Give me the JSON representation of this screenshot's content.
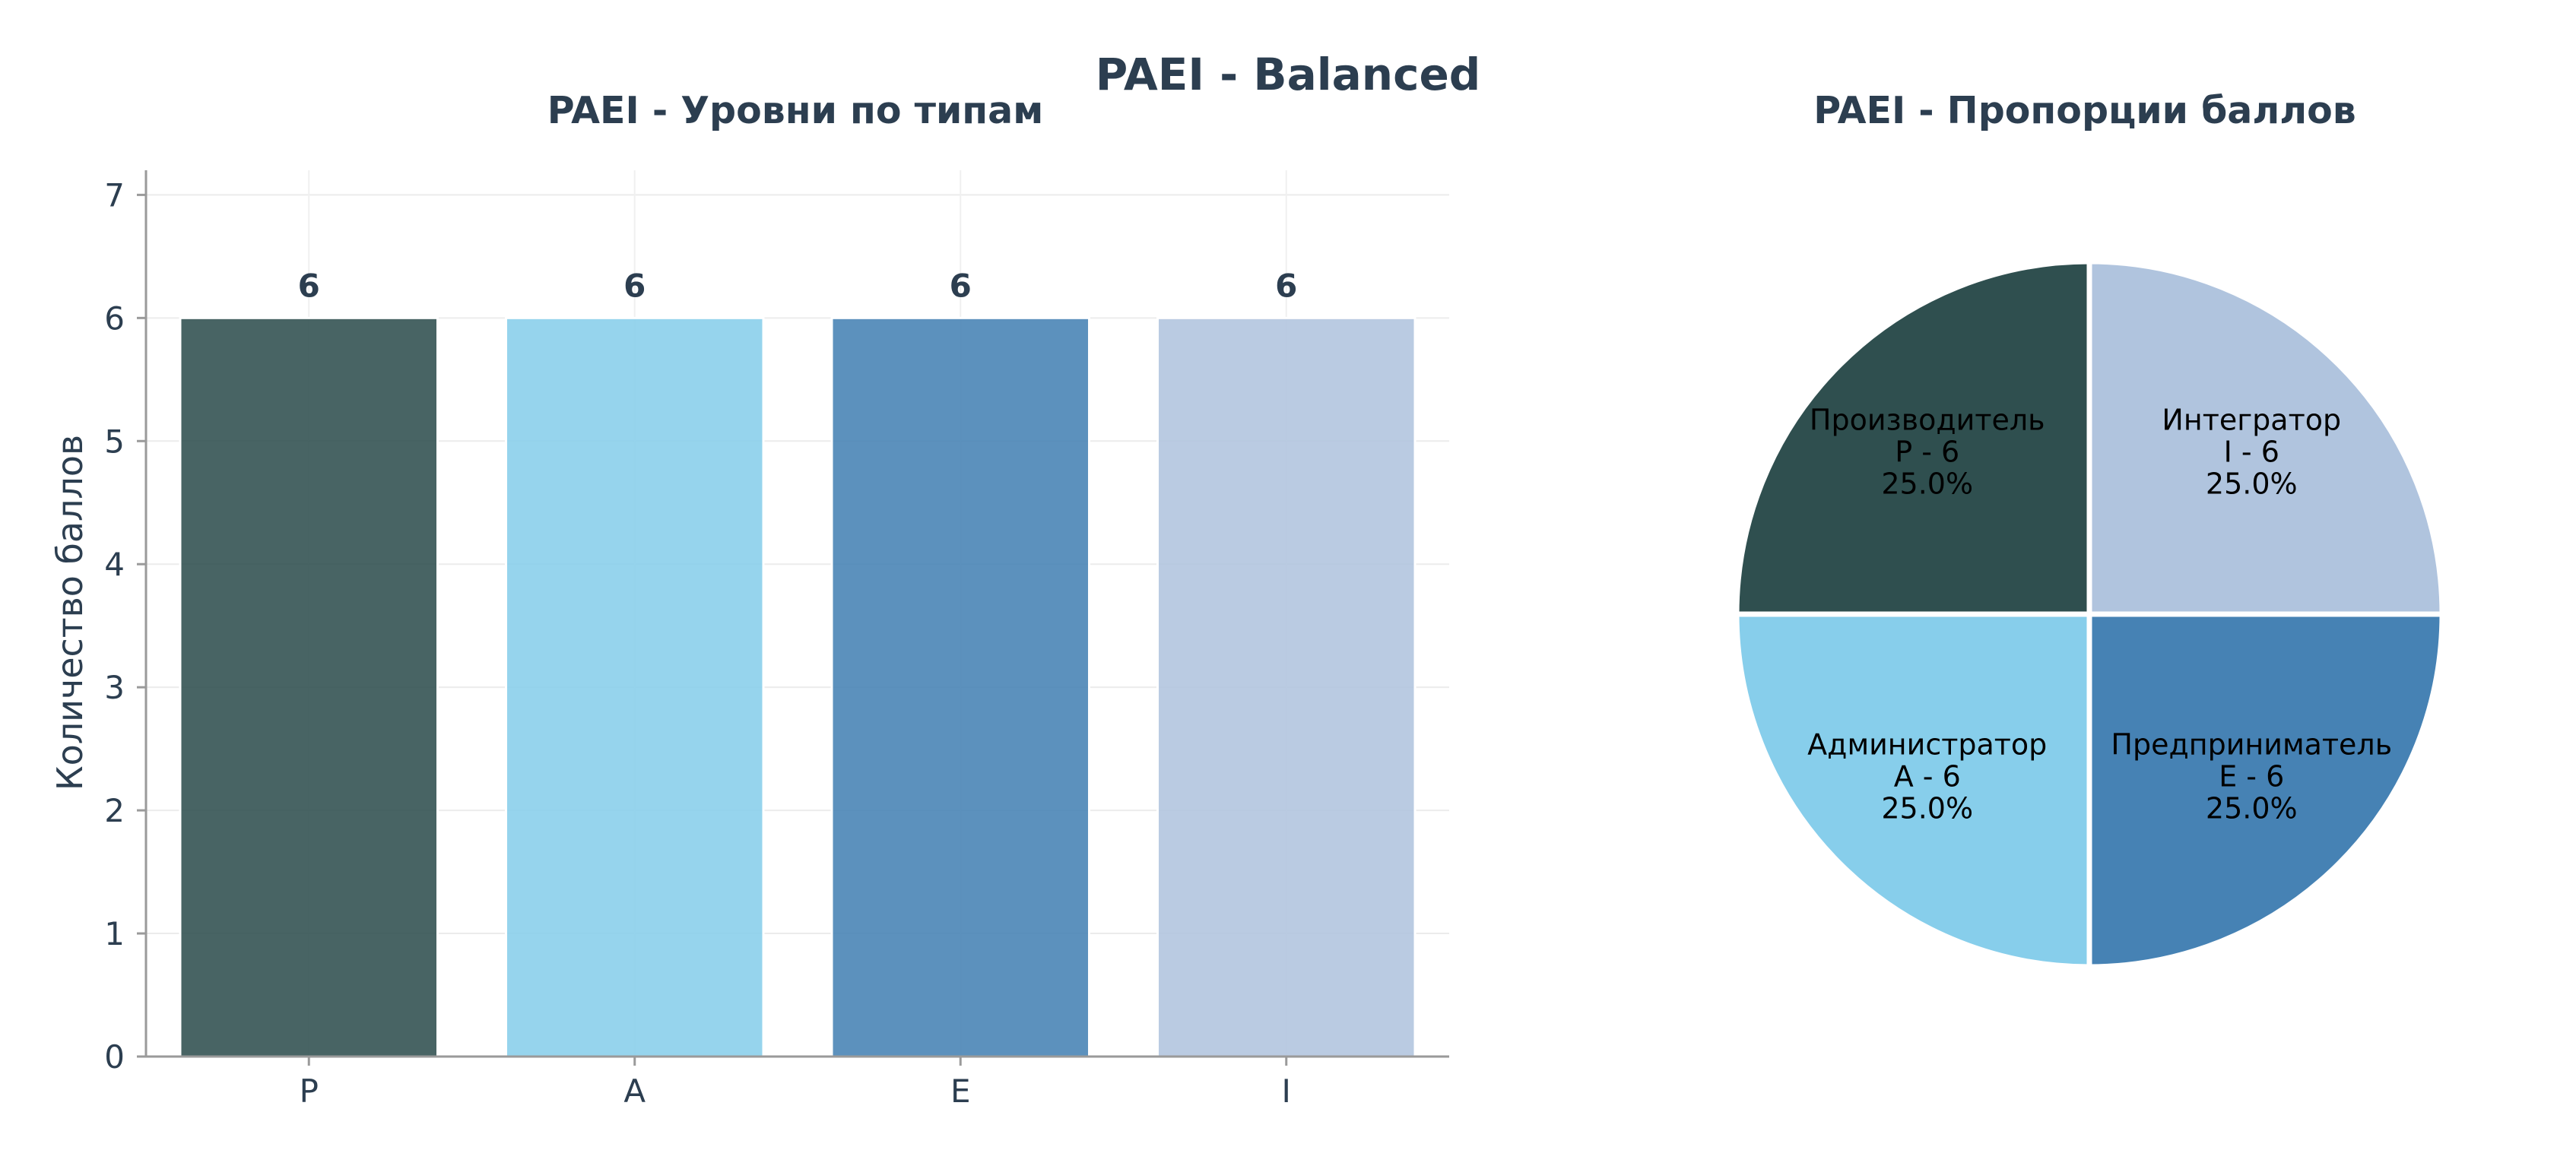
{
  "title": "PAEI - Balanced",
  "chart_data": [
    {
      "type": "bar",
      "title": "PAEI - Уровни по типам",
      "xlabel": "",
      "ylabel": "Количество баллов",
      "categories": [
        "P",
        "A",
        "E",
        "I"
      ],
      "values": [
        6,
        6,
        6,
        6
      ],
      "data_labels": [
        "6",
        "6",
        "6",
        "6"
      ],
      "colors": [
        "#2F4F4F",
        "#87CEEB",
        "#4682B4",
        "#B0C4DE"
      ],
      "ylim": [
        0,
        7.2
      ],
      "yticks": [
        0,
        1,
        2,
        3,
        4,
        5,
        6,
        7
      ],
      "grid": true,
      "legend": "none"
    },
    {
      "type": "pie",
      "title": "PAEI - Пропорции баллов",
      "slices": [
        {
          "name": "Производитель",
          "code_value": "P - 6",
          "percent": "25.0%",
          "value": 6,
          "color": "#2F4F4F"
        },
        {
          "name": "Администратор",
          "code_value": "A - 6",
          "percent": "25.0%",
          "value": 6,
          "color": "#87CEEB"
        },
        {
          "name": "Предприниматель",
          "code_value": "E - 6",
          "percent": "25.0%",
          "value": 6,
          "color": "#4682B4"
        },
        {
          "name": "Интегратор",
          "code_value": "I - 6",
          "percent": "25.0%",
          "value": 6,
          "color": "#B0C4DE"
        }
      ],
      "start_angle_deg": 90,
      "direction": "counterclockwise",
      "slice_edge_color": "#ffffff",
      "legend": "none"
    }
  ]
}
